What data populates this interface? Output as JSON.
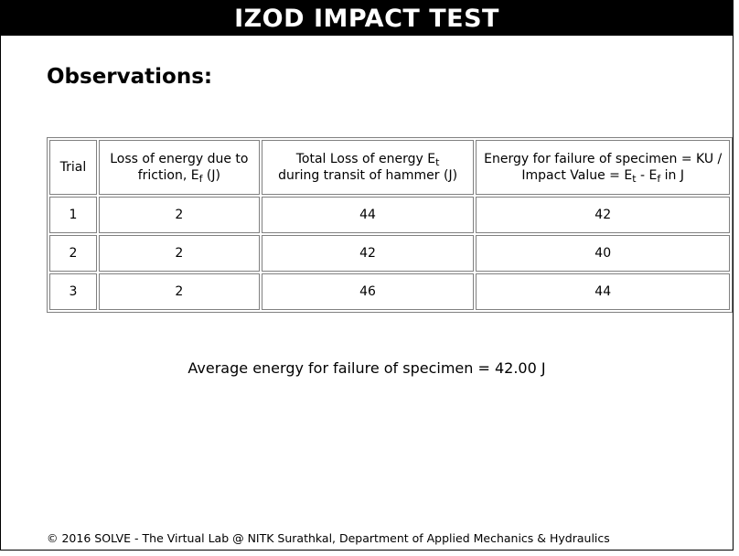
{
  "page": {
    "title": "IZOD IMPACT TEST",
    "heading": "Observations:"
  },
  "table": {
    "headers": {
      "trial": "Trial",
      "friction_loss_main": "Loss of energy due to friction, E",
      "friction_loss_sub": "f",
      "friction_loss_unit": " (J)",
      "total_loss_main": "Total Loss of energy E",
      "total_loss_sub": "t",
      "total_loss_rest": "during transit of hammer (J)",
      "failure_main": "Energy for failure of specimen = KU / Impact Value = E",
      "failure_sub1": "t",
      "failure_mid": " - E",
      "failure_sub2": "f",
      "failure_end": " in J"
    },
    "rows": [
      {
        "trial": "1",
        "friction": "2",
        "total": "44",
        "failure": "42"
      },
      {
        "trial": "2",
        "friction": "2",
        "total": "42",
        "failure": "40"
      },
      {
        "trial": "3",
        "friction": "2",
        "total": "46",
        "failure": "44"
      }
    ]
  },
  "summary": "Average energy for failure of specimen = 42.00 J",
  "footer": "© 2016 SOLVE - The Virtual Lab @ NITK Surathkal, Department of Applied Mechanics & Hydraulics"
}
